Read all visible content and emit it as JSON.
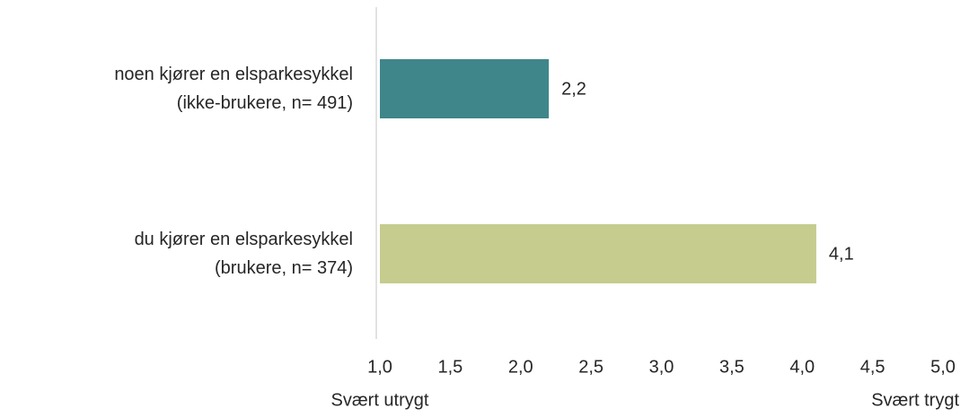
{
  "chart_data": {
    "type": "hbar",
    "categories": [
      "noen kjører en elsparkesykkel\n(ikke-brukere, n= 491)",
      "du kjører en elsparkesykkel\n(brukere, n= 374)"
    ],
    "values": [
      2.2,
      4.1
    ],
    "value_labels": [
      "2,2",
      "4,1"
    ],
    "colors": [
      "#3f868a",
      "#c5cc8e"
    ],
    "xlim": [
      1,
      5
    ],
    "xticks": [
      {
        "value": 1,
        "label": "1,0"
      },
      {
        "value": 1.5,
        "label": "1,5"
      },
      {
        "value": 2,
        "label": "2,0"
      },
      {
        "value": 2.5,
        "label": "2,5"
      },
      {
        "value": 3,
        "label": "3,0"
      },
      {
        "value": 3.5,
        "label": "3,5"
      },
      {
        "value": 4,
        "label": "4,0"
      },
      {
        "value": 4.5,
        "label": "4,5"
      },
      {
        "value": 5,
        "label": "5,0"
      }
    ],
    "scale_labels": {
      "low": "Svært utrygt",
      "high": "Svært trygt"
    },
    "grid": false
  }
}
